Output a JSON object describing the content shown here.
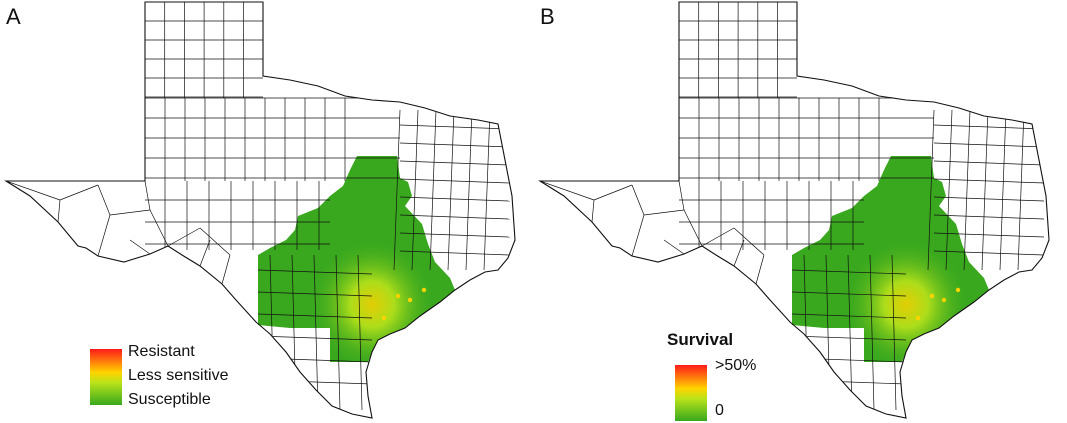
{
  "panels": [
    {
      "label": "A",
      "legend": {
        "title": "",
        "labels": [
          "Resistant",
          "Less sensitive",
          "Susceptible"
        ]
      }
    },
    {
      "label": "B",
      "legend": {
        "title": "Survival",
        "labels": [
          ">50%",
          "0"
        ]
      }
    }
  ],
  "colors": {
    "county_border": "#111111",
    "susceptible": "#39a81e",
    "less_sensitive": "#b9e31a",
    "resistant": "#ff1a1a",
    "intermediate": "#ffd400"
  }
}
